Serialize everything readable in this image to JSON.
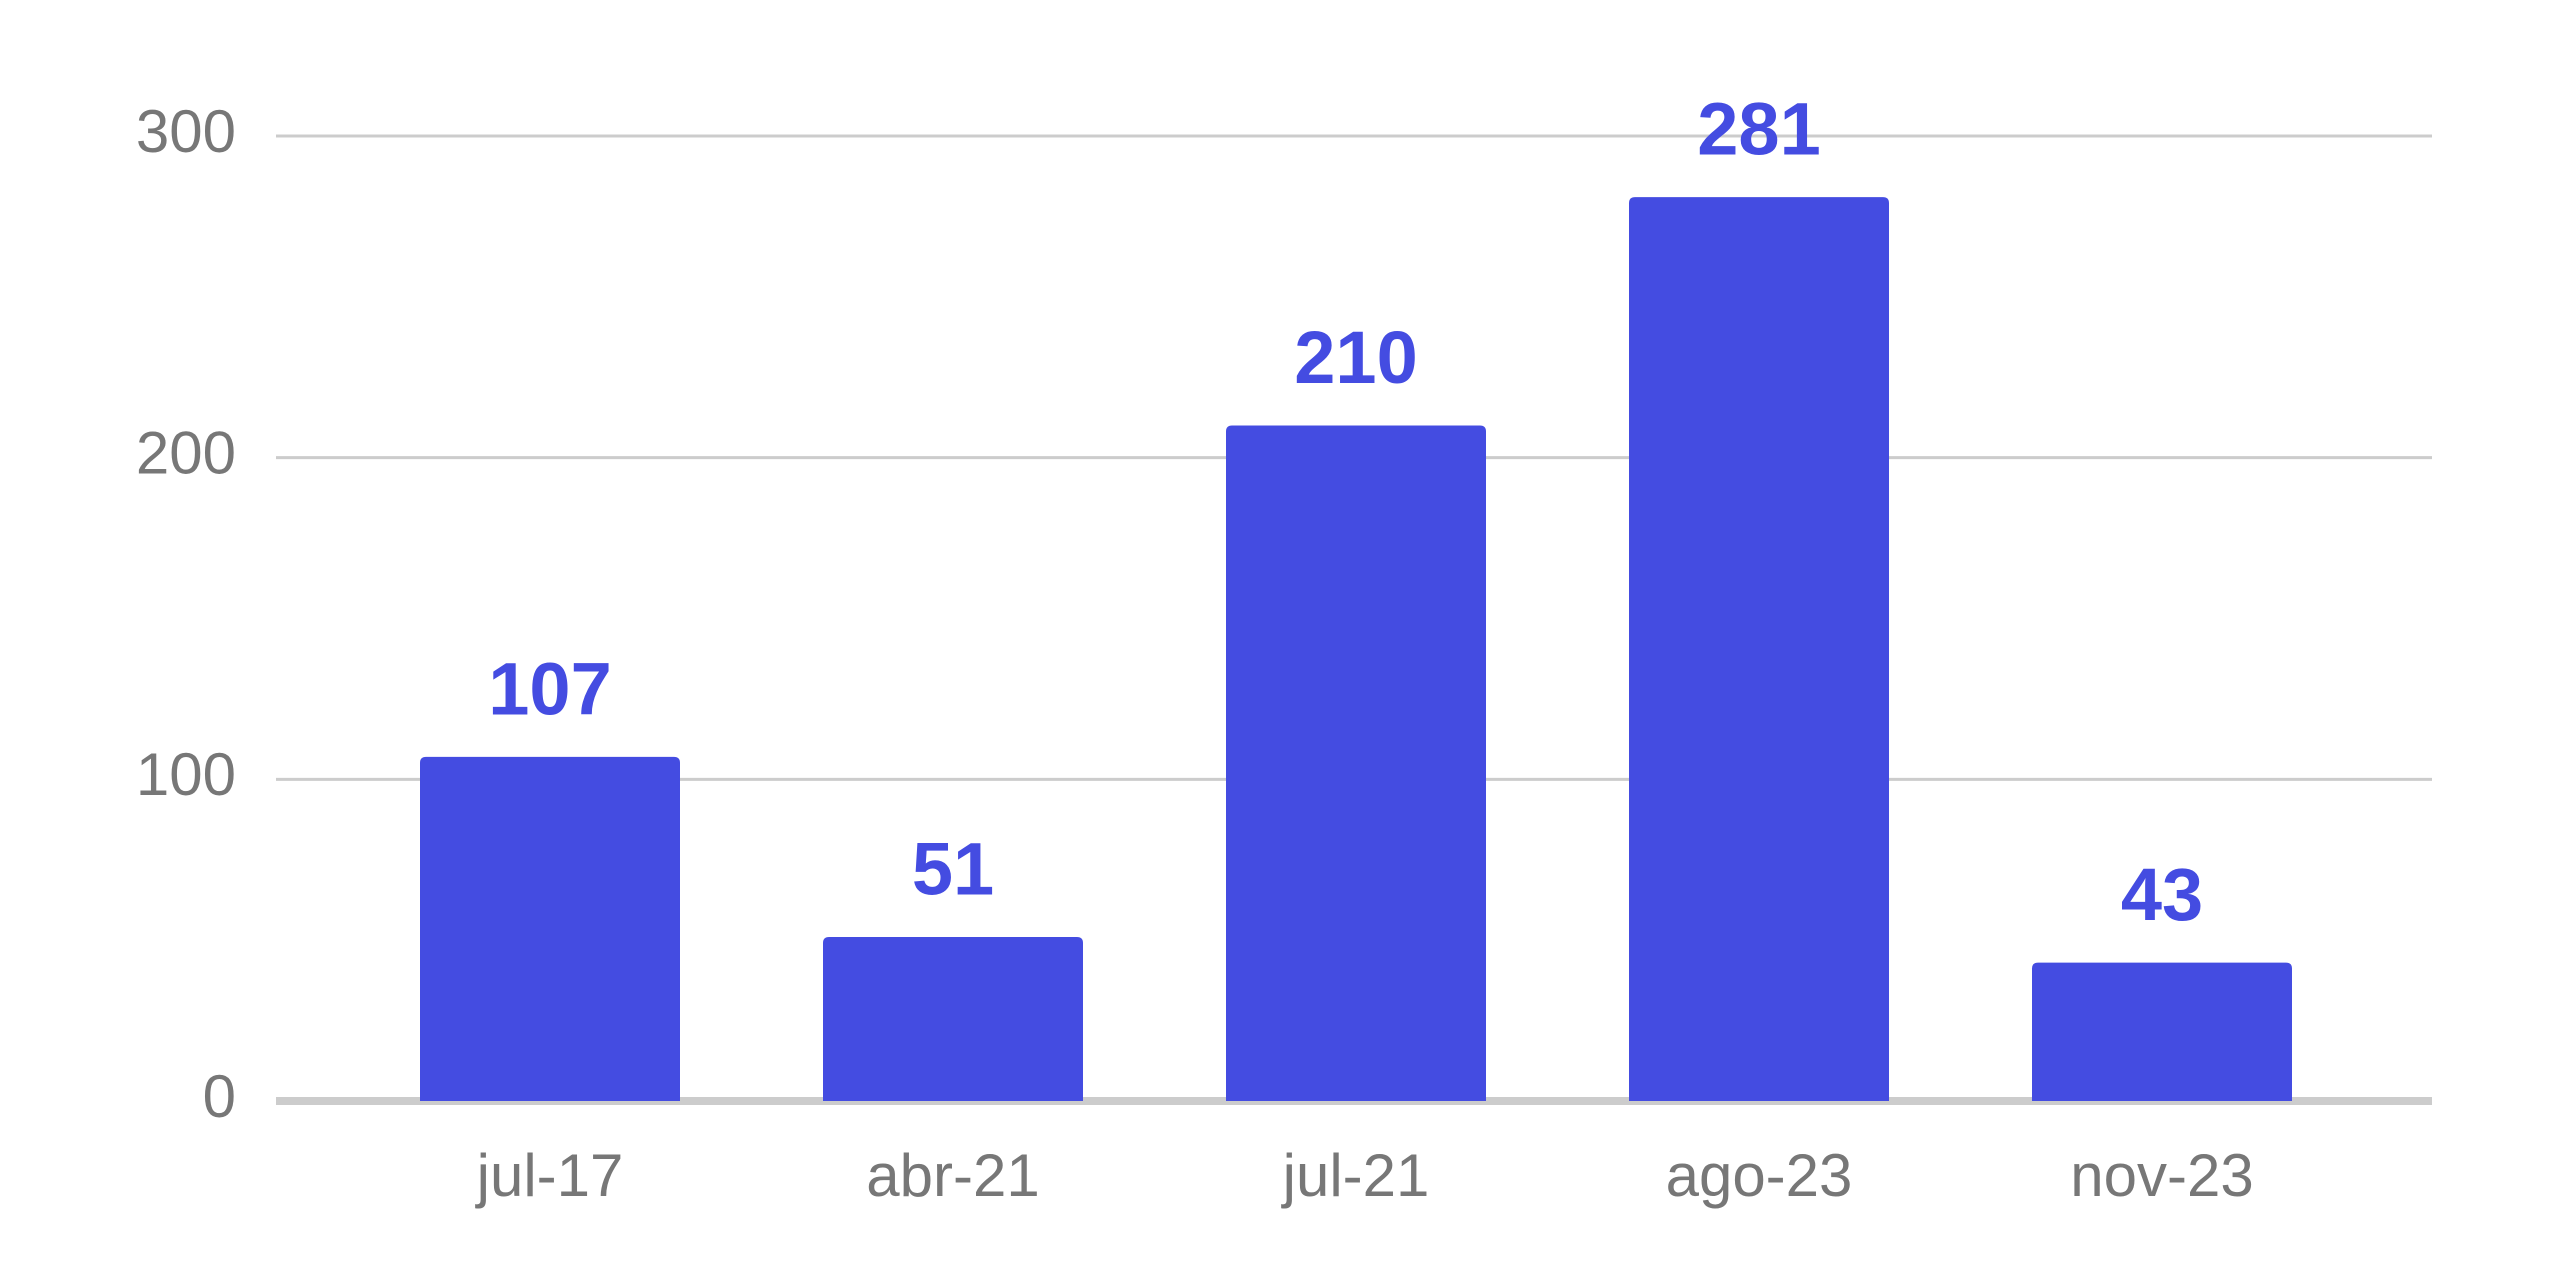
{
  "chart_data": {
    "type": "bar",
    "categories": [
      "jul-17",
      "abr-21",
      "jul-21",
      "ago-23",
      "nov-23"
    ],
    "values": [
      107,
      51,
      210,
      281,
      43
    ],
    "color": "#444ce1",
    "ylim": [
      0,
      300
    ],
    "yticks": [
      0,
      100,
      200,
      300
    ],
    "grid": true
  }
}
